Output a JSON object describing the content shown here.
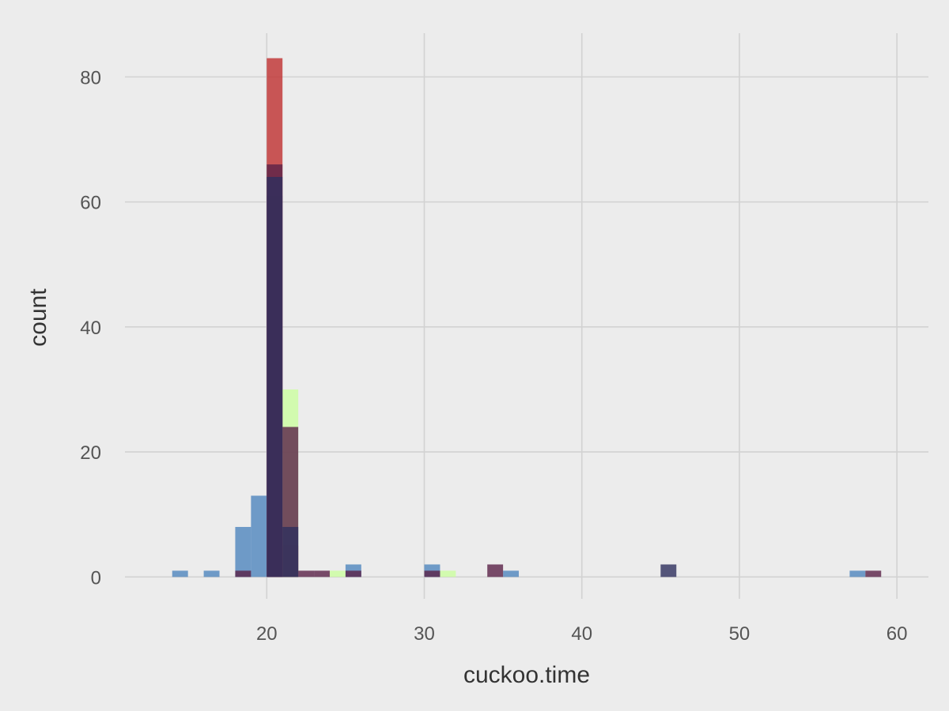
{
  "chart_data": {
    "type": "bar",
    "subtype": "overlaid histogram",
    "xlabel": "cuckoo.time",
    "ylabel": "count",
    "bin_width": 1,
    "xlim": [
      11,
      62
    ],
    "ylim": [
      -3.5,
      87
    ],
    "x_ticks": [
      20,
      30,
      40,
      50,
      60
    ],
    "y_ticks": [
      0,
      20,
      40,
      60,
      80
    ],
    "grid": true,
    "legend": "none",
    "bar_opacity": 0.8,
    "series": [
      {
        "color": "#4F86BE",
        "bins": [
          {
            "x0": 14,
            "x1": 15,
            "count": 1
          },
          {
            "x0": 16,
            "x1": 17,
            "count": 1
          },
          {
            "x0": 18,
            "x1": 19,
            "count": 8
          },
          {
            "x0": 19,
            "x1": 20,
            "count": 13
          },
          {
            "x0": 20,
            "x1": 21,
            "count": 61
          },
          {
            "x0": 21,
            "x1": 22,
            "count": 8
          },
          {
            "x0": 25,
            "x1": 26,
            "count": 2
          },
          {
            "x0": 30,
            "x1": 31,
            "count": 2
          },
          {
            "x0": 35,
            "x1": 36,
            "count": 1
          },
          {
            "x0": 57,
            "x1": 58,
            "count": 1
          }
        ]
      },
      {
        "color": "#BF3030",
        "bins": [
          {
            "x0": 20,
            "x1": 21,
            "count": 83
          },
          {
            "x0": 21,
            "x1": 22,
            "count": 5
          }
        ]
      },
      {
        "color": "#CCFFA0",
        "bins": [
          {
            "x0": 21,
            "x1": 22,
            "count": 30
          },
          {
            "x0": 24,
            "x1": 25,
            "count": 1
          },
          {
            "x0": 31,
            "x1": 32,
            "count": 1
          }
        ]
      },
      {
        "color": "#5A2247",
        "bins": [
          {
            "x0": 18,
            "x1": 19,
            "count": 1
          },
          {
            "x0": 20,
            "x1": 21,
            "count": 66
          },
          {
            "x0": 21,
            "x1": 22,
            "count": 24
          },
          {
            "x0": 22,
            "x1": 23,
            "count": 1
          },
          {
            "x0": 23,
            "x1": 24,
            "count": 1
          },
          {
            "x0": 25,
            "x1": 26,
            "count": 1
          },
          {
            "x0": 30,
            "x1": 31,
            "count": 1
          },
          {
            "x0": 34,
            "x1": 35,
            "count": 2
          },
          {
            "x0": 58,
            "x1": 59,
            "count": 1
          }
        ]
      },
      {
        "color": "#2E2F5E",
        "bins": [
          {
            "x0": 20,
            "x1": 21,
            "count": 64
          },
          {
            "x0": 21,
            "x1": 22,
            "count": 8
          },
          {
            "x0": 45,
            "x1": 46,
            "count": 2
          }
        ]
      }
    ]
  }
}
